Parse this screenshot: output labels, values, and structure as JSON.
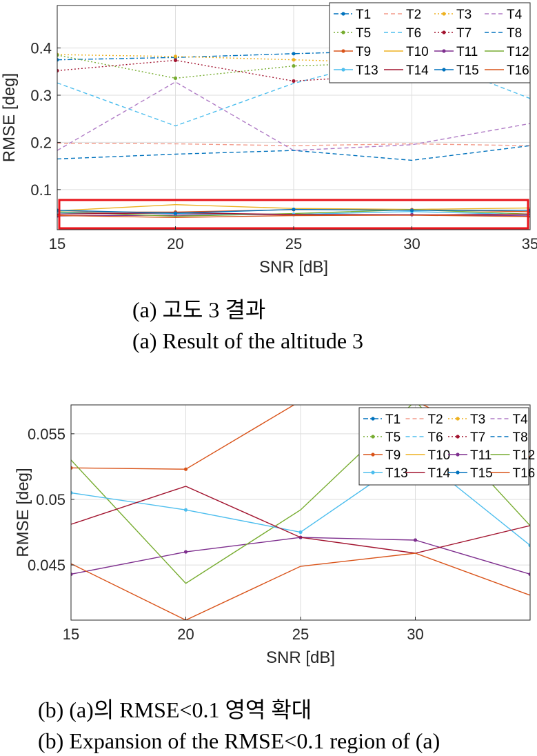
{
  "captions": {
    "a_ko": "(a) 고도 3 결과",
    "a_en": "(a) Result of the altitude 3",
    "b_ko": "(b) (a)의 RMSE<0.1 영역 확대",
    "b_en": "(b) Expansion of the RMSE<0.1 region of (a)"
  },
  "chart_data": [
    {
      "type": "line",
      "xlabel": "SNR [dB]",
      "ylabel": "RMSE [deg]",
      "xlim": [
        15,
        35
      ],
      "ylim": [
        0.015,
        0.49
      ],
      "xticks": [
        15,
        20,
        25,
        30,
        35
      ],
      "yticks": [
        0.1,
        0.2,
        0.3,
        0.4
      ],
      "ytick_labels": [
        "0.1",
        "0.2",
        "0.3",
        "0.4"
      ],
      "grid": true,
      "legend_position": "top-right",
      "highlight_box_y": [
        0.018,
        0.078
      ],
      "x": [
        15,
        20,
        25,
        30,
        35
      ],
      "series": [
        {
          "name": "T1",
          "color": "#0072BD",
          "style": "dashdot",
          "marker": true,
          "values": [
            0.375,
            0.38,
            0.388,
            0.395,
            0.408
          ]
        },
        {
          "name": "T2",
          "color": "#F39C8C",
          "style": "dashed",
          "marker": false,
          "values": [
            0.198,
            0.197,
            0.193,
            0.197,
            0.193
          ]
        },
        {
          "name": "T3",
          "color": "#EDB120",
          "style": "dotted",
          "marker": true,
          "values": [
            0.386,
            0.382,
            0.375,
            0.368,
            0.385
          ]
        },
        {
          "name": "T4",
          "color": "#B07CC6",
          "style": "dashed",
          "marker": false,
          "values": [
            0.183,
            0.328,
            0.183,
            0.195,
            0.24
          ]
        },
        {
          "name": "T5",
          "color": "#77AC30",
          "style": "dotted",
          "marker": true,
          "values": [
            0.385,
            0.336,
            0.362,
            0.37,
            0.378
          ]
        },
        {
          "name": "T6",
          "color": "#4DBEEE",
          "style": "dashed",
          "marker": false,
          "values": [
            0.326,
            0.235,
            0.325,
            0.39,
            0.293
          ]
        },
        {
          "name": "T7",
          "color": "#A2142F",
          "style": "dotted",
          "marker": true,
          "values": [
            0.352,
            0.374,
            0.33,
            0.345,
            0.356
          ]
        },
        {
          "name": "T8",
          "color": "#0072BD",
          "style": "dashed",
          "marker": false,
          "values": [
            0.165,
            0.175,
            0.183,
            0.162,
            0.193
          ]
        },
        {
          "name": "T9",
          "color": "#D95319",
          "style": "solid",
          "marker": true,
          "values": [
            0.0524,
            0.0523,
            0.0575,
            0.0575,
            0.0532
          ]
        },
        {
          "name": "T10",
          "color": "#EDB120",
          "style": "solid",
          "marker": false,
          "values": [
            0.055,
            0.068,
            0.06,
            0.058,
            0.061
          ]
        },
        {
          "name": "T11",
          "color": "#7E2F8E",
          "style": "solid",
          "marker": true,
          "values": [
            0.0443,
            0.046,
            0.0471,
            0.0469,
            0.0443
          ]
        },
        {
          "name": "T12",
          "color": "#77AC30",
          "style": "solid",
          "marker": false,
          "values": [
            0.053,
            0.0436,
            0.0492,
            0.0575,
            0.048
          ]
        },
        {
          "name": "T13",
          "color": "#4DBEEE",
          "style": "solid",
          "marker": true,
          "values": [
            0.0505,
            0.0492,
            0.0475,
            0.0535,
            0.0465
          ]
        },
        {
          "name": "T14",
          "color": "#A2142F",
          "style": "solid",
          "marker": false,
          "values": [
            0.0481,
            0.051,
            0.0471,
            0.0459,
            0.048
          ]
        },
        {
          "name": "T15",
          "color": "#0072BD",
          "style": "solid",
          "marker": true,
          "values": [
            0.056,
            0.05,
            0.058,
            0.056,
            0.056
          ]
        },
        {
          "name": "T16",
          "color": "#D95319",
          "style": "solid",
          "marker": false,
          "values": [
            0.0451,
            0.0408,
            0.0449,
            0.0459,
            0.0427
          ]
        }
      ]
    },
    {
      "type": "line",
      "xlabel": "SNR [dB]",
      "ylabel": "RMSE [deg]",
      "xlim": [
        15,
        35
      ],
      "ylim": [
        0.0408,
        0.0572
      ],
      "xticks": [
        15,
        20,
        25,
        30
      ],
      "yticks": [
        0.045,
        0.05,
        0.055
      ],
      "ytick_labels": [
        "0.045",
        "0.05",
        "0.055"
      ],
      "grid": true,
      "legend_position": "top-right",
      "x": [
        15,
        20,
        25,
        30,
        35
      ],
      "series": [
        {
          "name": "T1",
          "color": "#0072BD",
          "style": "dashdot",
          "marker": true,
          "values": [
            null,
            null,
            null,
            null,
            null
          ]
        },
        {
          "name": "T2",
          "color": "#F39C8C",
          "style": "dashed",
          "marker": false,
          "values": [
            null,
            null,
            null,
            null,
            null
          ]
        },
        {
          "name": "T3",
          "color": "#EDB120",
          "style": "dotted",
          "marker": true,
          "values": [
            null,
            null,
            null,
            null,
            null
          ]
        },
        {
          "name": "T4",
          "color": "#B07CC6",
          "style": "dashed",
          "marker": false,
          "values": [
            null,
            null,
            null,
            null,
            null
          ]
        },
        {
          "name": "T5",
          "color": "#77AC30",
          "style": "dotted",
          "marker": true,
          "values": [
            null,
            null,
            null,
            null,
            null
          ]
        },
        {
          "name": "T6",
          "color": "#4DBEEE",
          "style": "dashed",
          "marker": false,
          "values": [
            null,
            null,
            null,
            null,
            null
          ]
        },
        {
          "name": "T7",
          "color": "#A2142F",
          "style": "dotted",
          "marker": true,
          "values": [
            null,
            null,
            null,
            null,
            null
          ]
        },
        {
          "name": "T8",
          "color": "#0072BD",
          "style": "dashed",
          "marker": false,
          "values": [
            null,
            null,
            null,
            null,
            null
          ]
        },
        {
          "name": "T9",
          "color": "#D95319",
          "style": "solid",
          "marker": true,
          "values": [
            0.0524,
            0.0523,
            0.0575,
            0.0575,
            0.0532
          ]
        },
        {
          "name": "T10",
          "color": "#EDB120",
          "style": "solid",
          "marker": false,
          "values": [
            null,
            null,
            null,
            null,
            null
          ]
        },
        {
          "name": "T11",
          "color": "#7E2F8E",
          "style": "solid",
          "marker": true,
          "values": [
            0.0443,
            0.046,
            0.0471,
            0.0469,
            0.0443
          ]
        },
        {
          "name": "T12",
          "color": "#77AC30",
          "style": "solid",
          "marker": false,
          "values": [
            0.053,
            0.0436,
            0.0492,
            0.0575,
            0.048
          ]
        },
        {
          "name": "T13",
          "color": "#4DBEEE",
          "style": "solid",
          "marker": true,
          "values": [
            0.0505,
            0.0492,
            0.0475,
            0.0535,
            0.0465
          ]
        },
        {
          "name": "T14",
          "color": "#A2142F",
          "style": "solid",
          "marker": false,
          "values": [
            0.0481,
            0.051,
            0.0471,
            0.0459,
            0.048
          ]
        },
        {
          "name": "T15",
          "color": "#0072BD",
          "style": "solid",
          "marker": true,
          "values": [
            null,
            null,
            null,
            null,
            null
          ]
        },
        {
          "name": "T16",
          "color": "#D95319",
          "style": "solid",
          "marker": false,
          "values": [
            0.0451,
            0.0408,
            0.0449,
            0.0459,
            0.0427
          ]
        }
      ]
    }
  ]
}
